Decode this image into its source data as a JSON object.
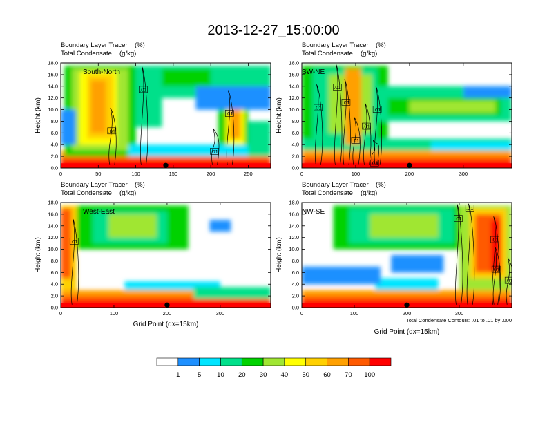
{
  "figure": {
    "title": "2013-12-27_15:00:00"
  },
  "chart_data": [
    {
      "type": "heatmap",
      "section": "South-North",
      "field_label_1": "Boundary Layer Tracer",
      "field_unit_1": "(%)",
      "field_label_2": "Total Condensate",
      "field_unit_2": "(g/kg)",
      "ylabel": "Height (km)",
      "xlabel": "",
      "xlim": [
        0,
        280
      ],
      "ylim": [
        0,
        18
      ],
      "xticks": [
        0,
        50,
        100,
        150,
        200,
        250
      ],
      "xtick_labels": [
        "0",
        "50",
        "100",
        "150",
        "200",
        "250"
      ],
      "yticks": [
        0,
        2,
        4,
        6,
        8,
        10,
        12,
        14,
        16,
        18
      ],
      "ytick_labels": [
        "0.0",
        "2.0",
        "4.0",
        "6.0",
        "8.0",
        "10.0",
        "12.0",
        "14.0",
        "16.0",
        "18.0"
      ],
      "contour_labels": [
        {
          "text": ".01",
          "x": 110,
          "y": 13.4
        },
        {
          "text": ".01",
          "x": 68,
          "y": 6.3
        },
        {
          "text": ".01",
          "x": 225,
          "y": 9.3
        },
        {
          "text": ".01",
          "x": 205,
          "y": 2.8
        }
      ],
      "marker_x": 140
    },
    {
      "type": "heatmap",
      "section": "SW-NE",
      "field_label_1": "Boundary Layer Tracer",
      "field_unit_1": "(%)",
      "field_label_2": "Total Condensate",
      "field_unit_2": "(g/kg)",
      "ylabel": "Height (km)",
      "xlabel": "",
      "xlim": [
        0,
        390
      ],
      "ylim": [
        0,
        18
      ],
      "xticks": [
        0,
        100,
        200,
        300
      ],
      "xtick_labels": [
        "0",
        "100",
        "200",
        "300"
      ],
      "yticks": [
        0,
        2,
        4,
        6,
        8,
        10,
        12,
        14,
        16,
        18
      ],
      "ytick_labels": [
        "0.0",
        "2.0",
        "4.0",
        "6.0",
        "8.0",
        "10.0",
        "12.0",
        "14.0",
        "16.0",
        "18.0"
      ],
      "contour_labels": [
        {
          "text": ".01",
          "x": 66,
          "y": 13.8
        },
        {
          "text": ".01",
          "x": 82,
          "y": 11.2
        },
        {
          "text": ".01",
          "x": 30,
          "y": 10.3
        },
        {
          "text": ".01",
          "x": 140,
          "y": 10.0
        },
        {
          "text": ".01",
          "x": 120,
          "y": 7.1
        },
        {
          "text": ".01",
          "x": 100,
          "y": 4.7
        },
        {
          "text": ".01",
          "x": 135,
          "y": 0.8
        }
      ],
      "marker_x": 200
    },
    {
      "type": "heatmap",
      "section": "West-East",
      "field_label_1": "Boundary Layer Tracer",
      "field_unit_1": "(%)",
      "field_label_2": "Total Condensate",
      "field_unit_2": "(g/kg)",
      "ylabel": "Height (km)",
      "xlabel": "Grid Point (dx=15km)",
      "xlim": [
        0,
        395
      ],
      "ylim": [
        0,
        18
      ],
      "xticks": [
        0,
        100,
        200,
        300
      ],
      "xtick_labels": [
        "0",
        "100",
        "200",
        "300"
      ],
      "yticks": [
        0,
        2,
        4,
        6,
        8,
        10,
        12,
        14,
        16,
        18
      ],
      "ytick_labels": [
        "0.0",
        "2.0",
        "4.0",
        "6.0",
        "8.0",
        "10.0",
        "12.0",
        "14.0",
        "16.0",
        "18.0"
      ],
      "contour_labels": [
        {
          "text": ".01",
          "x": 25,
          "y": 11.3
        }
      ],
      "marker_x": 200
    },
    {
      "type": "heatmap",
      "section": "NW-SE",
      "field_label_1": "Boundary Layer Tracer",
      "field_unit_1": "(%)",
      "field_label_2": "Total Condensate",
      "field_unit_2": "(g/kg)",
      "ylabel": "Height (km)",
      "xlabel": "Grid Point (dx=15km)",
      "xlim": [
        0,
        400
      ],
      "ylim": [
        0,
        18
      ],
      "xticks": [
        0,
        100,
        200,
        300
      ],
      "xtick_labels": [
        "0",
        "100",
        "200",
        "300"
      ],
      "yticks": [
        0,
        2,
        4,
        6,
        8,
        10,
        12,
        14,
        16,
        18
      ],
      "ytick_labels": [
        "0.0",
        "2.0",
        "4.0",
        "6.0",
        "8.0",
        "10.0",
        "12.0",
        "14.0",
        "16.0",
        "18.0"
      ],
      "contour_labels": [
        {
          "text": ".01",
          "x": 320,
          "y": 17.0
        },
        {
          "text": ".01",
          "x": 298,
          "y": 15.2
        },
        {
          "text": ".01",
          "x": 368,
          "y": 11.6
        },
        {
          "text": ".01",
          "x": 370,
          "y": 6.5
        },
        {
          "text": ".01",
          "x": 395,
          "y": 4.6
        }
      ],
      "marker_x": 200,
      "contour_note": "Total Condensate Contours: .01 to .01 by .000"
    }
  ],
  "colorbar": {
    "levels": [
      "1",
      "5",
      "10",
      "20",
      "30",
      "40",
      "50",
      "60",
      "70",
      "100"
    ],
    "colors": [
      "#ffffff",
      "#1e90ff",
      "#00e5ff",
      "#00e08a",
      "#00d200",
      "#a0e632",
      "#ffff00",
      "#ffd000",
      "#ffa000",
      "#ff5a00",
      "#ff0000"
    ]
  }
}
